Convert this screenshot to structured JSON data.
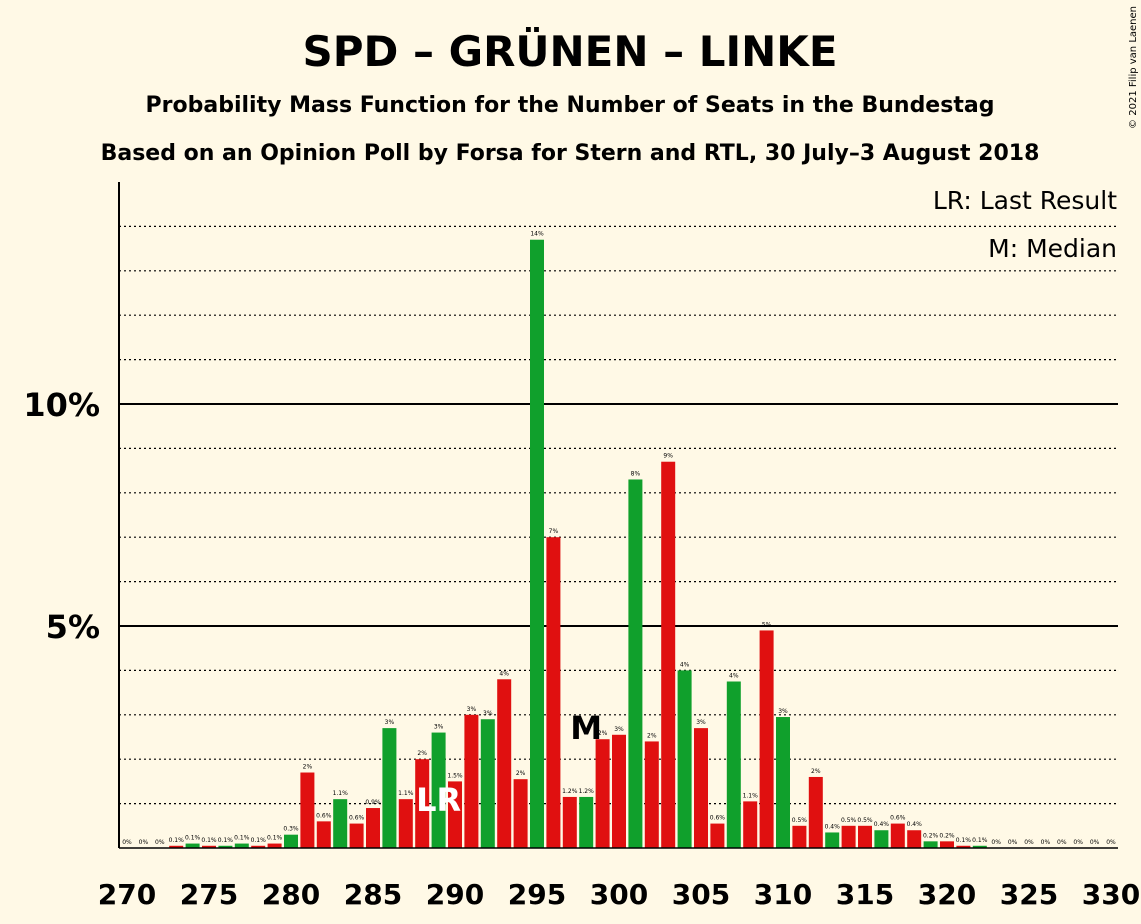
{
  "title": "SPD – GRÜNEN – LINKE",
  "subtitle": "Probability Mass Function for the Number of Seats in the Bundestag",
  "subtitle2": "Based on an Opinion Poll by Forsa for Stern and RTL, 30 July–3 August 2018",
  "legend": {
    "last_result": "LR: Last Result",
    "median": "M: Median"
  },
  "credit": "© 2021 Filip van Laenen",
  "colors": {
    "green": "#10A02C",
    "red": "#E01010",
    "background": "#FFF9E6"
  },
  "chart_data": {
    "type": "bar",
    "xlabel": "",
    "ylabel": "",
    "ylim": [
      0,
      15
    ],
    "ytick_labels": [
      {
        "value": 5,
        "label": "5%"
      },
      {
        "value": 10,
        "label": "10%"
      }
    ],
    "xtick_labels": [
      "270",
      "275",
      "280",
      "285",
      "290",
      "295",
      "300",
      "305",
      "310",
      "315",
      "320",
      "325",
      "330"
    ],
    "last_result_seat": 289,
    "last_result_label": "LR",
    "median_seat": 298,
    "median_label": "M",
    "bars": [
      {
        "seat": 270,
        "value": 0.0,
        "label": "0%",
        "color": "green"
      },
      {
        "seat": 271,
        "value": 0.0,
        "label": "0%",
        "color": "red"
      },
      {
        "seat": 272,
        "value": 0.0,
        "label": "0%",
        "color": "green"
      },
      {
        "seat": 273,
        "value": 0.05,
        "label": "0.1%",
        "color": "red"
      },
      {
        "seat": 274,
        "value": 0.1,
        "label": "0.1%",
        "color": "green"
      },
      {
        "seat": 275,
        "value": 0.05,
        "label": "0.1%",
        "color": "red"
      },
      {
        "seat": 276,
        "value": 0.05,
        "label": "0.1%",
        "color": "green"
      },
      {
        "seat": 277,
        "value": 0.1,
        "label": "0.1%",
        "color": "green"
      },
      {
        "seat": 278,
        "value": 0.05,
        "label": "0.1%",
        "color": "red"
      },
      {
        "seat": 279,
        "value": 0.1,
        "label": "0.1%",
        "color": "red"
      },
      {
        "seat": 280,
        "value": 0.3,
        "label": "0.3%",
        "color": "green"
      },
      {
        "seat": 281,
        "value": 1.7,
        "label": "2%",
        "color": "red"
      },
      {
        "seat": 282,
        "value": 0.6,
        "label": "0.6%",
        "color": "red"
      },
      {
        "seat": 283,
        "value": 1.1,
        "label": "1.1%",
        "color": "green"
      },
      {
        "seat": 284,
        "value": 0.55,
        "label": "0.6%",
        "color": "red"
      },
      {
        "seat": 285,
        "value": 0.9,
        "label": "0.9%",
        "color": "red"
      },
      {
        "seat": 286,
        "value": 2.7,
        "label": "3%",
        "color": "green"
      },
      {
        "seat": 287,
        "value": 1.1,
        "label": "1.1%",
        "color": "red"
      },
      {
        "seat": 288,
        "value": 2.0,
        "label": "2%",
        "color": "red"
      },
      {
        "seat": 289,
        "value": 2.6,
        "label": "3%",
        "color": "green"
      },
      {
        "seat": 290,
        "value": 1.5,
        "label": "1.5%",
        "color": "red"
      },
      {
        "seat": 291,
        "value": 3.0,
        "label": "3%",
        "color": "red"
      },
      {
        "seat": 292,
        "value": 2.9,
        "label": "3%",
        "color": "green"
      },
      {
        "seat": 293,
        "value": 3.8,
        "label": "4%",
        "color": "red"
      },
      {
        "seat": 294,
        "value": 1.55,
        "label": "2%",
        "color": "red"
      },
      {
        "seat": 295,
        "value": 13.7,
        "label": "14%",
        "color": "green"
      },
      {
        "seat": 296,
        "value": 7.0,
        "label": "7%",
        "color": "red"
      },
      {
        "seat": 297,
        "value": 1.15,
        "label": "1.2%",
        "color": "red"
      },
      {
        "seat": 298,
        "value": 1.15,
        "label": "1.2%",
        "color": "green"
      },
      {
        "seat": 299,
        "value": 2.45,
        "label": "2%",
        "color": "red"
      },
      {
        "seat": 300,
        "value": 2.55,
        "label": "3%",
        "color": "red"
      },
      {
        "seat": 301,
        "value": 8.3,
        "label": "8%",
        "color": "green"
      },
      {
        "seat": 302,
        "value": 2.4,
        "label": "2%",
        "color": "red"
      },
      {
        "seat": 303,
        "value": 8.7,
        "label": "9%",
        "color": "red"
      },
      {
        "seat": 304,
        "value": 4.0,
        "label": "4%",
        "color": "green"
      },
      {
        "seat": 305,
        "value": 2.7,
        "label": "3%",
        "color": "red"
      },
      {
        "seat": 306,
        "value": 0.55,
        "label": "0.6%",
        "color": "red"
      },
      {
        "seat": 307,
        "value": 3.75,
        "label": "4%",
        "color": "green"
      },
      {
        "seat": 308,
        "value": 1.05,
        "label": "1.1%",
        "color": "red"
      },
      {
        "seat": 309,
        "value": 4.9,
        "label": "5%",
        "color": "red"
      },
      {
        "seat": 310,
        "value": 2.95,
        "label": "3%",
        "color": "green"
      },
      {
        "seat": 311,
        "value": 0.5,
        "label": "0.5%",
        "color": "red"
      },
      {
        "seat": 312,
        "value": 1.6,
        "label": "2%",
        "color": "red"
      },
      {
        "seat": 313,
        "value": 0.35,
        "label": "0.4%",
        "color": "green"
      },
      {
        "seat": 314,
        "value": 0.5,
        "label": "0.5%",
        "color": "red"
      },
      {
        "seat": 315,
        "value": 0.5,
        "label": "0.5%",
        "color": "red"
      },
      {
        "seat": 316,
        "value": 0.4,
        "label": "0.4%",
        "color": "green"
      },
      {
        "seat": 317,
        "value": 0.55,
        "label": "0.6%",
        "color": "red"
      },
      {
        "seat": 318,
        "value": 0.4,
        "label": "0.4%",
        "color": "red"
      },
      {
        "seat": 319,
        "value": 0.15,
        "label": "0.2%",
        "color": "green"
      },
      {
        "seat": 320,
        "value": 0.15,
        "label": "0.2%",
        "color": "red"
      },
      {
        "seat": 321,
        "value": 0.05,
        "label": "0.1%",
        "color": "red"
      },
      {
        "seat": 322,
        "value": 0.05,
        "label": "0.1%",
        "color": "green"
      },
      {
        "seat": 323,
        "value": 0.0,
        "label": "0%",
        "color": "red"
      },
      {
        "seat": 324,
        "value": 0.0,
        "label": "0%",
        "color": "red"
      },
      {
        "seat": 325,
        "value": 0.0,
        "label": "0%",
        "color": "green"
      },
      {
        "seat": 326,
        "value": 0.0,
        "label": "0%",
        "color": "red"
      },
      {
        "seat": 327,
        "value": 0.0,
        "label": "0%",
        "color": "red"
      },
      {
        "seat": 328,
        "value": 0.0,
        "label": "0%",
        "color": "green"
      },
      {
        "seat": 329,
        "value": 0.0,
        "label": "0%",
        "color": "red"
      },
      {
        "seat": 330,
        "value": 0.0,
        "label": "0%",
        "color": "red"
      }
    ]
  }
}
